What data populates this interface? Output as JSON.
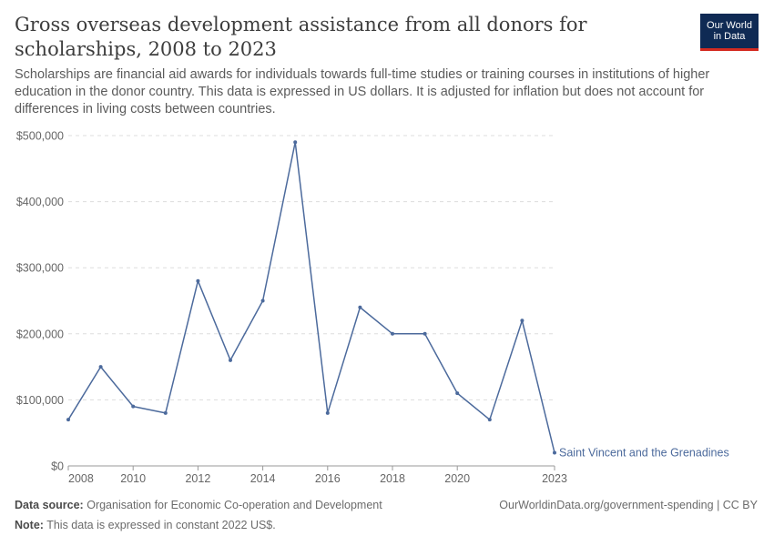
{
  "title": "Gross overseas development assistance from all donors for scholarships, 2008 to 2023",
  "subtitle": "Scholarships are financial aid awards for individuals towards full-time studies or training courses in institutions of higher education in the donor country. This data is expressed in US dollars. It is adjusted for inflation but does not account for differences in living costs between countries.",
  "logo": {
    "line1": "Our World",
    "line2": "in Data"
  },
  "footer": {
    "source_label": "Data source:",
    "source_text": "Organisation for Economic Co-operation and Development",
    "note_label": "Note:",
    "note_text": "This data is expressed in constant 2022 US$.",
    "license": "OurWorldinData.org/government-spending | CC BY"
  },
  "colors": {
    "series": "#4c6a9c",
    "grid": "#dddddd",
    "axis_text": "#666666"
  },
  "chart_data": {
    "type": "line",
    "title": "Gross overseas development assistance from all donors for scholarships, 2008 to 2023",
    "xlabel": "",
    "ylabel": "",
    "xlim": [
      2008,
      2023
    ],
    "ylim": [
      0,
      500000
    ],
    "x_ticks": [
      2008,
      2010,
      2012,
      2014,
      2016,
      2018,
      2020,
      2023
    ],
    "y_ticks": [
      {
        "value": 0,
        "label": "$0"
      },
      {
        "value": 100000,
        "label": "$100,000"
      },
      {
        "value": 200000,
        "label": "$200,000"
      },
      {
        "value": 300000,
        "label": "$300,000"
      },
      {
        "value": 400000,
        "label": "$400,000"
      },
      {
        "value": 500000,
        "label": "$500,000"
      }
    ],
    "grid": "horizontal dashed",
    "series": [
      {
        "name": "Saint Vincent and the Grenadines",
        "x": [
          2008,
          2009,
          2010,
          2011,
          2012,
          2013,
          2014,
          2015,
          2016,
          2017,
          2018,
          2019,
          2020,
          2021,
          2022,
          2023
        ],
        "values": [
          70000,
          150000,
          90000,
          80000,
          280000,
          160000,
          250000,
          490000,
          80000,
          240000,
          200000,
          200000,
          110000,
          70000,
          220000,
          20000
        ]
      }
    ]
  }
}
